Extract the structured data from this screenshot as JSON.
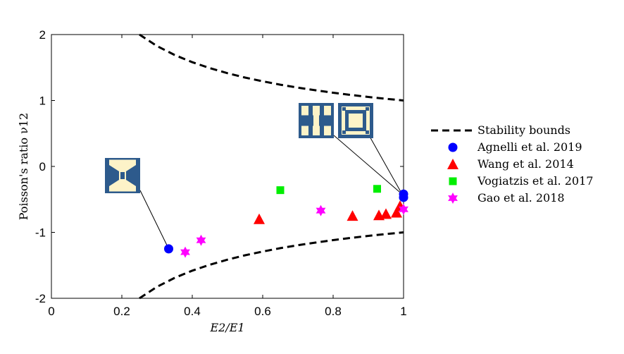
{
  "chart_data": {
    "type": "scatter",
    "xlabel": "E2/E1",
    "ylabel": "Poisson's ratio ν12",
    "xlim": [
      0,
      1
    ],
    "ylim": [
      -2,
      2
    ],
    "xticks": [
      0,
      0.2,
      0.4,
      0.6,
      0.8,
      1
    ],
    "yticks": [
      -2,
      -1,
      0,
      1,
      2
    ],
    "xtick_labels": [
      "0",
      "0.2",
      "0.4",
      "0.6",
      "0.8",
      "1"
    ],
    "ytick_labels": [
      "-2",
      "-1",
      "0",
      "1",
      "2"
    ],
    "grid": false,
    "legend_position": "right",
    "series": [
      {
        "name": "Stability bounds",
        "style": "dashed-line",
        "color": "#000000",
        "upper": {
          "x": [
            0.25,
            0.3,
            0.35,
            0.4,
            0.45,
            0.5,
            0.55,
            0.6,
            0.65,
            0.7,
            0.75,
            0.8,
            0.85,
            0.9,
            0.95,
            1.0
          ],
          "y": [
            2.0,
            1.826,
            1.69,
            1.581,
            1.491,
            1.414,
            1.348,
            1.291,
            1.24,
            1.195,
            1.155,
            1.118,
            1.085,
            1.054,
            1.026,
            1.0
          ]
        },
        "lower": {
          "x": [
            0.25,
            0.3,
            0.35,
            0.4,
            0.45,
            0.5,
            0.55,
            0.6,
            0.65,
            0.7,
            0.75,
            0.8,
            0.85,
            0.9,
            0.95,
            1.0
          ],
          "y": [
            -2.0,
            -1.826,
            -1.69,
            -1.581,
            -1.491,
            -1.414,
            -1.348,
            -1.291,
            -1.24,
            -1.195,
            -1.155,
            -1.118,
            -1.085,
            -1.054,
            -1.026,
            -1.0
          ]
        }
      },
      {
        "name": "Agnelli et al. 2019",
        "marker": "circle",
        "color": "#0000ff",
        "x": [
          0.333,
          1.0,
          1.0
        ],
        "y": [
          -1.25,
          -0.42,
          -0.47
        ]
      },
      {
        "name": "Wang et al. 2014",
        "marker": "triangle",
        "color": "#ff0000",
        "x": [
          0.59,
          0.855,
          0.93,
          0.95,
          0.98,
          0.99
        ],
        "y": [
          -0.8,
          -0.75,
          -0.74,
          -0.72,
          -0.7,
          -0.6
        ]
      },
      {
        "name": "Vogiatzis et al. 2017",
        "marker": "square",
        "color": "#00ee00",
        "x": [
          0.65,
          0.925
        ],
        "y": [
          -0.36,
          -0.34
        ]
      },
      {
        "name": "Gao et al. 2018",
        "marker": "hexagram",
        "color": "#ff00ff",
        "x": [
          0.38,
          0.425,
          0.765,
          1.0
        ],
        "y": [
          -1.3,
          -1.12,
          -0.67,
          -0.65
        ]
      }
    ]
  },
  "insets": [
    {
      "name": "inset-unit-cell-low",
      "pattern": "pattern-a",
      "anchor": {
        "x": 0.333,
        "y": -1.25
      }
    },
    {
      "name": "inset-unit-cell-high-1",
      "pattern": "pattern-b",
      "anchor": {
        "x": 1.0,
        "y": -0.44
      }
    },
    {
      "name": "inset-unit-cell-high-2",
      "pattern": "pattern-c",
      "anchor": {
        "x": 1.0,
        "y": -0.46
      }
    }
  ],
  "colors": {
    "inset_blue": "#2d5a8c",
    "inset_cream": "#fdf3c8"
  }
}
